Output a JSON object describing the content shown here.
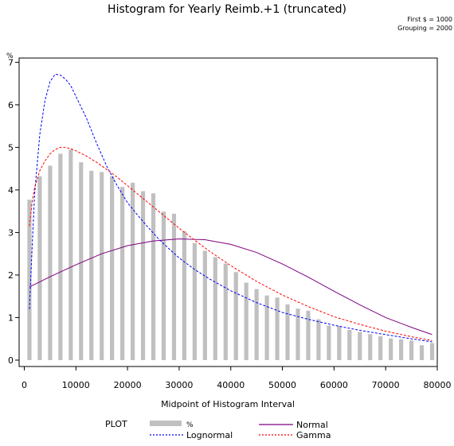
{
  "chart_data": {
    "type": "bar",
    "title": "Histogram for Yearly Reimb.+1 (truncated)",
    "notes": [
      "First $ = 1000",
      "Grouping = 2000"
    ],
    "xlabel": "Midpoint of Histogram Interval",
    "ylabel": "%",
    "xlim": [
      -1000,
      80000
    ],
    "ylim": [
      -0.15,
      7.1
    ],
    "xticks": [
      0,
      10000,
      20000,
      30000,
      40000,
      50000,
      60000,
      70000,
      80000
    ],
    "yticks": [
      0,
      1,
      2,
      3,
      4,
      5,
      6,
      7
    ],
    "bar_width": 800,
    "bars": {
      "name": "%",
      "x": [
        1000,
        3000,
        5000,
        7000,
        9000,
        11000,
        13000,
        15000,
        17000,
        19000,
        21000,
        23000,
        25000,
        27000,
        29000,
        31000,
        33000,
        35000,
        37000,
        39000,
        41000,
        43000,
        45000,
        47000,
        49000,
        51000,
        53000,
        55000,
        57000,
        59000,
        61000,
        63000,
        65000,
        67000,
        69000,
        71000,
        73000,
        75000,
        77000,
        79000
      ],
      "values": [
        3.77,
        4.32,
        4.57,
        4.85,
        4.95,
        4.65,
        4.45,
        4.42,
        4.32,
        4.07,
        4.17,
        3.97,
        3.92,
        3.49,
        3.44,
        3.03,
        2.75,
        2.57,
        2.42,
        2.27,
        2.07,
        1.82,
        1.67,
        1.52,
        1.47,
        1.31,
        1.21,
        1.16,
        0.96,
        0.81,
        0.8,
        0.71,
        0.66,
        0.61,
        0.56,
        0.51,
        0.49,
        0.46,
        0.35,
        0.4
      ]
    },
    "series": [
      {
        "name": "Normal",
        "color": "#800080",
        "dash": "solid",
        "x": [
          1000,
          5000,
          10000,
          15000,
          20000,
          25000,
          30000,
          35000,
          40000,
          45000,
          50000,
          55000,
          60000,
          65000,
          70000,
          75000,
          79000
        ],
        "values": [
          1.72,
          1.96,
          2.24,
          2.5,
          2.69,
          2.8,
          2.85,
          2.83,
          2.72,
          2.53,
          2.26,
          1.95,
          1.62,
          1.3,
          1.0,
          0.77,
          0.6
        ]
      },
      {
        "name": "Lognormal",
        "color": "#0000ff",
        "dash": "dashed",
        "x": [
          1000,
          1500,
          2000,
          3000,
          4000,
          5000,
          6000,
          7000,
          8000,
          9000,
          10000,
          12000,
          14000,
          16000,
          18000,
          20000,
          22000,
          24000,
          26000,
          28000,
          30000,
          33000,
          36000,
          40000,
          45000,
          50000,
          55000,
          60000,
          65000,
          70000,
          75000,
          79000
        ],
        "values": [
          1.2,
          2.6,
          3.9,
          5.3,
          6.1,
          6.55,
          6.72,
          6.7,
          6.6,
          6.45,
          6.2,
          5.7,
          5.1,
          4.55,
          4.1,
          3.7,
          3.4,
          3.12,
          2.85,
          2.62,
          2.4,
          2.13,
          1.9,
          1.63,
          1.35,
          1.12,
          0.96,
          0.82,
          0.7,
          0.6,
          0.5,
          0.43
        ]
      },
      {
        "name": "Gamma",
        "color": "#ff0000",
        "dash": "dashed",
        "x": [
          1000,
          1500,
          2000,
          3000,
          4000,
          5000,
          6000,
          7000,
          8000,
          9000,
          10000,
          12000,
          14000,
          16000,
          18000,
          20000,
          22000,
          24000,
          26000,
          28000,
          30000,
          33000,
          36000,
          40000,
          45000,
          50000,
          55000,
          60000,
          65000,
          70000,
          75000,
          79000
        ],
        "values": [
          3.15,
          3.7,
          4.05,
          4.45,
          4.68,
          4.85,
          4.95,
          5.0,
          5.0,
          4.97,
          4.92,
          4.8,
          4.65,
          4.48,
          4.3,
          4.1,
          3.9,
          3.7,
          3.5,
          3.3,
          3.1,
          2.82,
          2.55,
          2.22,
          1.85,
          1.53,
          1.26,
          1.02,
          0.84,
          0.68,
          0.55,
          0.46
        ]
      }
    ],
    "bar_color": "#c0c0c0",
    "legend": {
      "heading": "PLOT",
      "placement": "bottom",
      "entries": [
        {
          "label": "%",
          "kind": "bar",
          "color": "#c0c0c0"
        },
        {
          "label": "Normal",
          "kind": "solid",
          "color": "#800080"
        },
        {
          "label": "Lognormal",
          "kind": "dashed",
          "color": "#0000ff"
        },
        {
          "label": "Gamma",
          "kind": "dashed",
          "color": "#ff0000"
        }
      ]
    }
  }
}
